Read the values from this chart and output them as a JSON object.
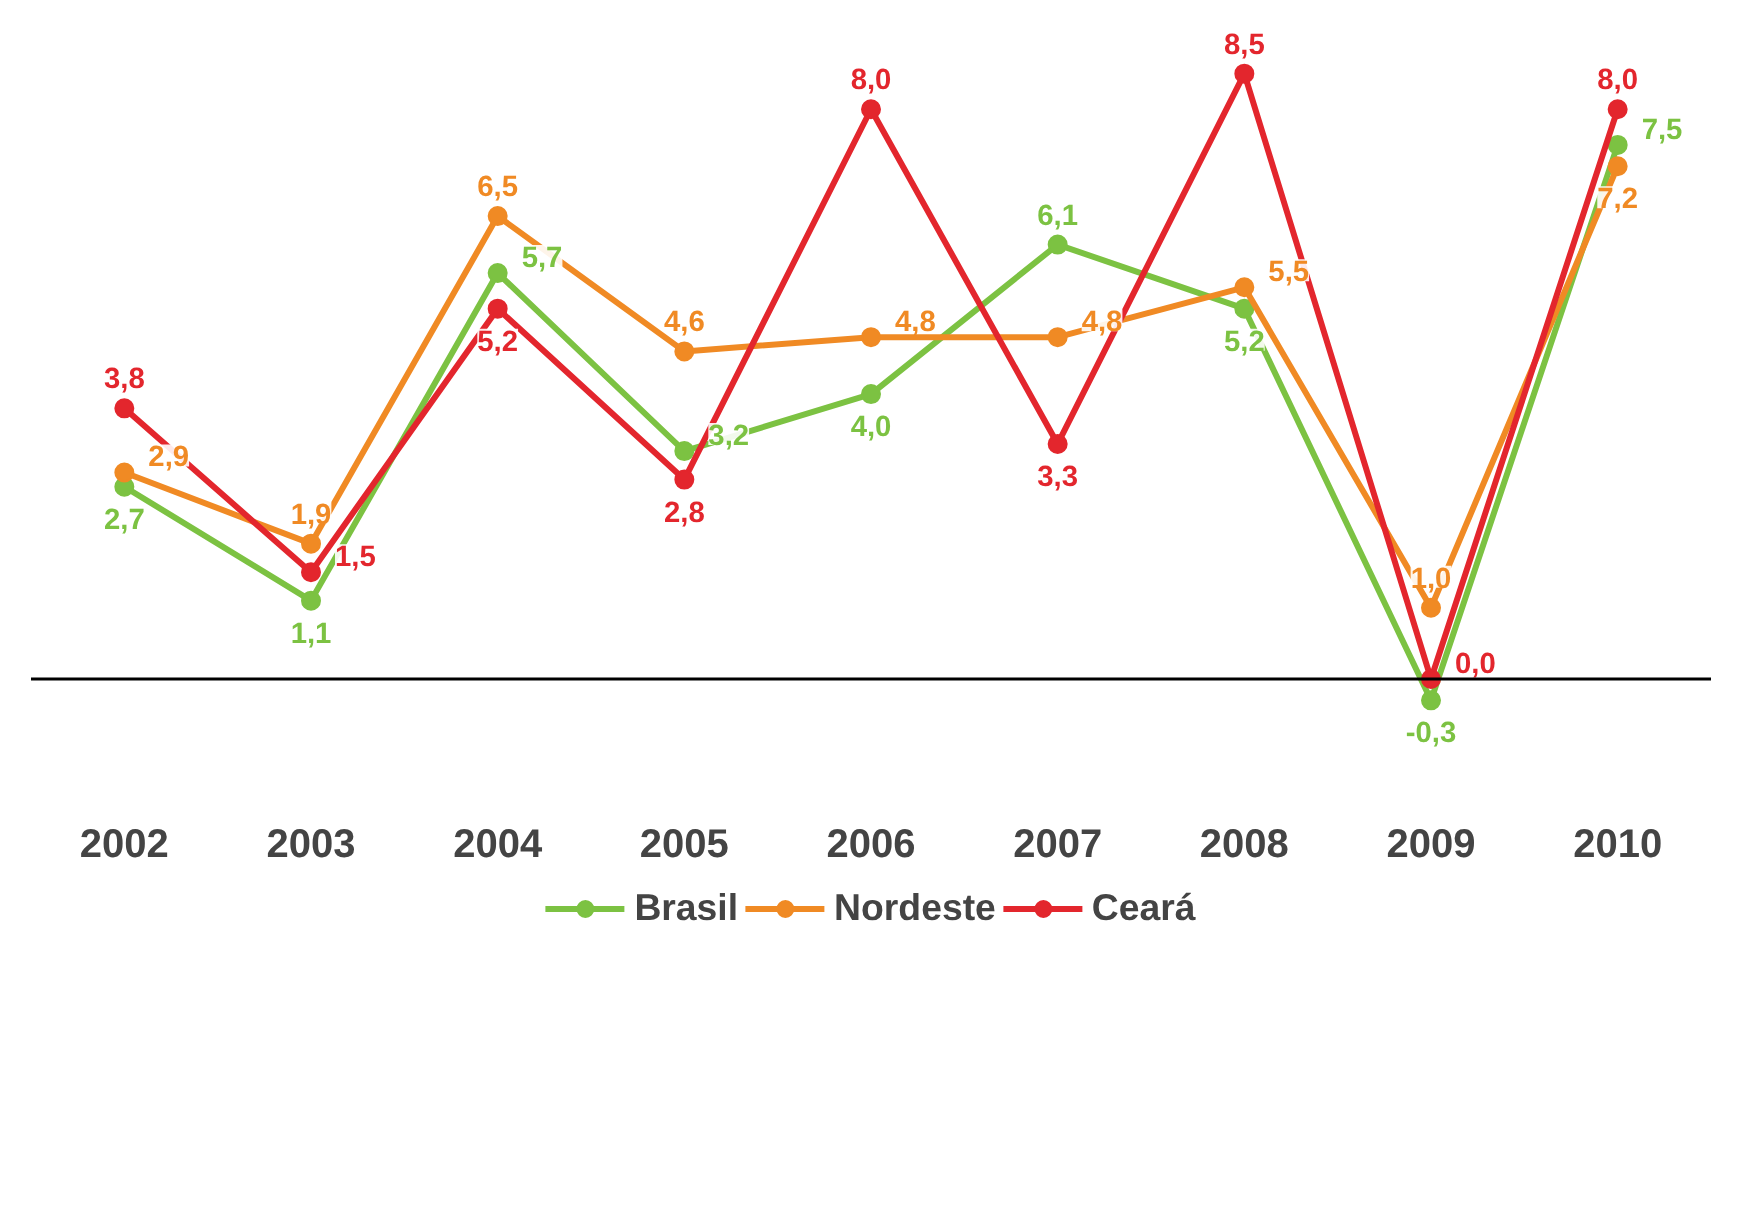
{
  "chart_data": {
    "type": "line",
    "categories": [
      "2002",
      "2003",
      "2004",
      "2005",
      "2006",
      "2007",
      "2008",
      "2009",
      "2010"
    ],
    "series": [
      {
        "name": "Brasil",
        "color": "#7cc242",
        "values": [
          2.7,
          1.1,
          5.7,
          3.2,
          4.0,
          6.1,
          5.2,
          -0.3,
          7.5
        ],
        "value_labels": [
          "2,7",
          "1,1",
          "5,7",
          "3,2",
          "4,0",
          "6,1",
          "5,2",
          "-0,3",
          "7,5"
        ]
      },
      {
        "name": "Nordeste",
        "color": "#f08a24",
        "values": [
          2.9,
          1.9,
          6.5,
          4.6,
          4.8,
          4.8,
          5.5,
          1.0,
          7.2
        ],
        "value_labels": [
          "2,9",
          "1,9",
          "6,5",
          "4,6",
          "4,8",
          "4,8",
          "5,5",
          "1,0",
          "7,2"
        ]
      },
      {
        "name": "Ceará",
        "color": "#e3262d",
        "values": [
          3.8,
          1.5,
          5.2,
          2.8,
          8.0,
          3.3,
          8.5,
          0.0,
          8.0
        ],
        "value_labels": [
          "3,8",
          "1,5",
          "5,2",
          "2,8",
          "8,0",
          "3,3",
          "8,5",
          "0,0",
          "8,0"
        ]
      }
    ],
    "marker": "circle",
    "line_style": "solid",
    "legend": "bottom",
    "grid": false,
    "tick_labels": "x"
  }
}
